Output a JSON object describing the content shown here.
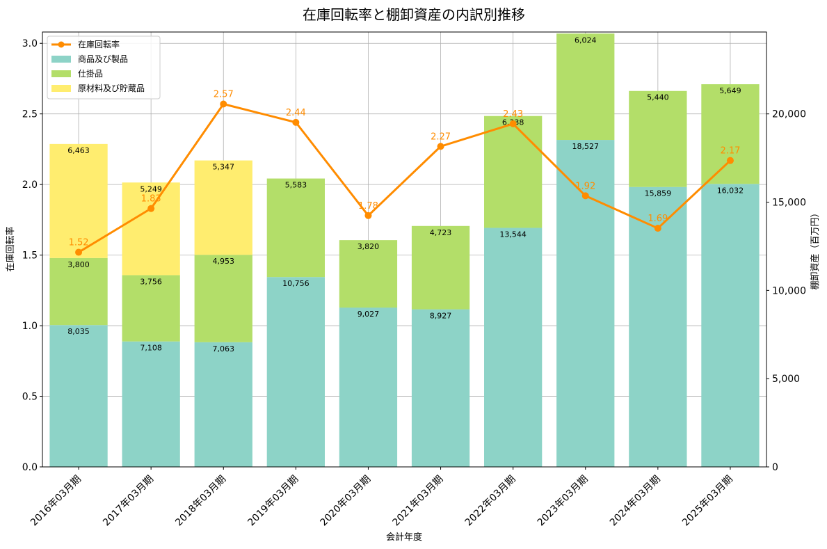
{
  "chart_data": {
    "type": "bar",
    "title": "在庫回転率と棚卸資産の内訳別推移",
    "xlabel": "会計年度",
    "ylabel_left": "在庫回転率",
    "ylabel_right": "棚卸資産（百万円）",
    "categories": [
      "2016年03月期",
      "2017年03月期",
      "2018年03月期",
      "2019年03月期",
      "2020年03月期",
      "2021年03月期",
      "2022年03月期",
      "2023年03月期",
      "2024年03月期",
      "2025年03月期"
    ],
    "series": [
      {
        "name": "商品及び製品",
        "kind": "stacked-bar",
        "axis": "right",
        "color": "#8dd3c7",
        "values": [
          8035,
          7108,
          7063,
          10756,
          9027,
          8927,
          13544,
          18527,
          15859,
          16032
        ],
        "labels": [
          "8,035",
          "7,108",
          "7,063",
          "10,756",
          "9,027",
          "8,927",
          "13,544",
          "18,527",
          "15,859",
          "16,032"
        ]
      },
      {
        "name": "仕掛品",
        "kind": "stacked-bar",
        "axis": "right",
        "color": "#b3de69",
        "values": [
          3800,
          3756,
          4953,
          5583,
          3820,
          4723,
          6338,
          6024,
          5440,
          5649
        ],
        "labels": [
          "3,800",
          "3,756",
          "4,953",
          "5,583",
          "3,820",
          "4,723",
          "6,338",
          "6,024",
          "5,440",
          "5,649"
        ]
      },
      {
        "name": "原材料及び貯蔵品",
        "kind": "stacked-bar",
        "axis": "right",
        "color": "#ffed6f",
        "values": [
          6463,
          5249,
          5347,
          0,
          0,
          0,
          0,
          0,
          0,
          0
        ],
        "labels": [
          "6,463",
          "5,249",
          "5,347",
          "",
          "",
          "",
          "",
          "",
          "",
          ""
        ]
      },
      {
        "name": "在庫回転率",
        "kind": "line",
        "axis": "left",
        "color": "#ff8c00",
        "values": [
          1.52,
          1.83,
          2.57,
          2.44,
          1.78,
          2.27,
          2.43,
          1.92,
          1.69,
          2.17
        ],
        "labels": [
          "1.52",
          "1.83",
          "2.57",
          "2.44",
          "1.78",
          "2.27",
          "2.43",
          "1.92",
          "1.69",
          "2.17"
        ]
      }
    ],
    "ylim_left": [
      0,
      3.08
    ],
    "ylim_right": [
      0,
      24640
    ],
    "yticks_left": [
      "0.0",
      "0.5",
      "1.0",
      "1.5",
      "2.0",
      "2.5",
      "3.0"
    ],
    "yticks_right": [
      "0",
      "5,000",
      "10,000",
      "15,000",
      "20,000"
    ],
    "grid": true,
    "legend_position": "top-left"
  }
}
